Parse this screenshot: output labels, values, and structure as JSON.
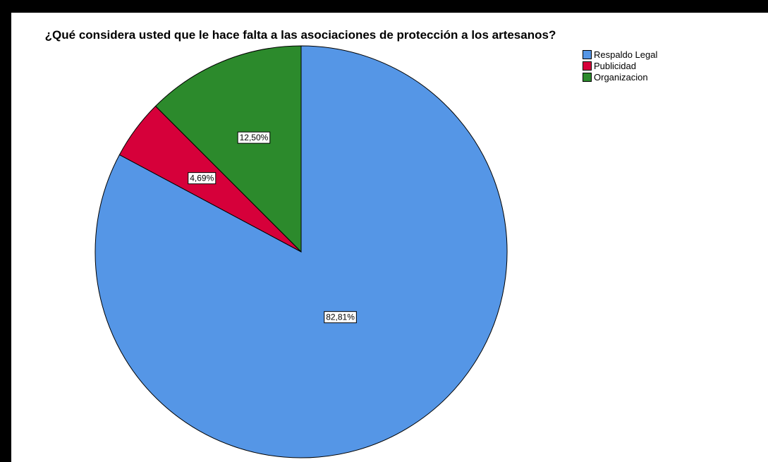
{
  "chart_data": {
    "type": "pie",
    "title": "¿Qué considera usted que le hace falta a las asociaciones de protección a los artesanos?",
    "categories": [
      "Respaldo Legal",
      "Publicidad",
      "Organizacion"
    ],
    "values": [
      82.81,
      4.69,
      12.5
    ],
    "labels": [
      "82,81%",
      "4,69%",
      "12,50%"
    ],
    "colors": [
      "#5596e6",
      "#d6003a",
      "#2c8a2c"
    ],
    "start_angle_deg": 0,
    "direction": "clockwise",
    "legend_position": "top-right"
  }
}
